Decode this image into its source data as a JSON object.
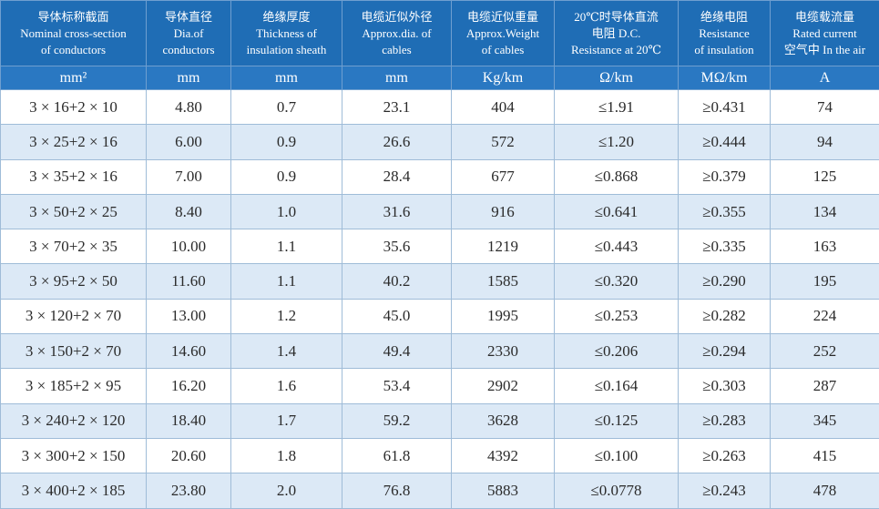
{
  "table": {
    "headers": [
      [
        "导体标称截面",
        "Nominal cross-section",
        "of conductors"
      ],
      [
        "导体直径",
        "Dia.of",
        "conductors"
      ],
      [
        "绝缘厚度",
        "Thickness of",
        "insulation sheath"
      ],
      [
        "电缆近似外径",
        "Approx.dia. of",
        "cables"
      ],
      [
        "电缆近似重量",
        "Approx.Weight",
        "of cables"
      ],
      [
        "20℃时导体直流",
        "电阻 D.C.",
        "Resistance at 20℃"
      ],
      [
        "绝缘电阻",
        "Resistance",
        "of insulation"
      ],
      [
        "电缆载流量",
        "Rated current",
        "空气中 In the air"
      ]
    ],
    "units": [
      "mm²",
      "mm",
      "mm",
      "mm",
      "Kg/km",
      "Ω/km",
      "MΩ/km",
      "A"
    ],
    "rows": [
      [
        "3 × 16+2 × 10",
        "4.80",
        "0.7",
        "23.1",
        "404",
        "≤1.91",
        "≥0.431",
        "74"
      ],
      [
        "3 × 25+2 × 16",
        "6.00",
        "0.9",
        "26.6",
        "572",
        "≤1.20",
        "≥0.444",
        "94"
      ],
      [
        "3 × 35+2 × 16",
        "7.00",
        "0.9",
        "28.4",
        "677",
        "≤0.868",
        "≥0.379",
        "125"
      ],
      [
        "3 × 50+2 × 25",
        "8.40",
        "1.0",
        "31.6",
        "916",
        "≤0.641",
        "≥0.355",
        "134"
      ],
      [
        "3 × 70+2 × 35",
        "10.00",
        "1.1",
        "35.6",
        "1219",
        "≤0.443",
        "≥0.335",
        "163"
      ],
      [
        "3 × 95+2 × 50",
        "11.60",
        "1.1",
        "40.2",
        "1585",
        "≤0.320",
        "≥0.290",
        "195"
      ],
      [
        "3 × 120+2 × 70",
        "13.00",
        "1.2",
        "45.0",
        "1995",
        "≤0.253",
        "≥0.282",
        "224"
      ],
      [
        "3 × 150+2 × 70",
        "14.60",
        "1.4",
        "49.4",
        "2330",
        "≤0.206",
        "≥0.294",
        "252"
      ],
      [
        "3 × 185+2 × 95",
        "16.20",
        "1.6",
        "53.4",
        "2902",
        "≤0.164",
        "≥0.303",
        "287"
      ],
      [
        "3 × 240+2 × 120",
        "18.40",
        "1.7",
        "59.2",
        "3628",
        "≤0.125",
        "≥0.283",
        "345"
      ],
      [
        "3 × 300+2 × 150",
        "20.60",
        "1.8",
        "61.8",
        "4392",
        "≤0.100",
        "≥0.263",
        "415"
      ],
      [
        "3 × 400+2 × 185",
        "23.80",
        "2.0",
        "76.8",
        "5883",
        "≤0.0778",
        "≥0.243",
        "478"
      ]
    ]
  }
}
